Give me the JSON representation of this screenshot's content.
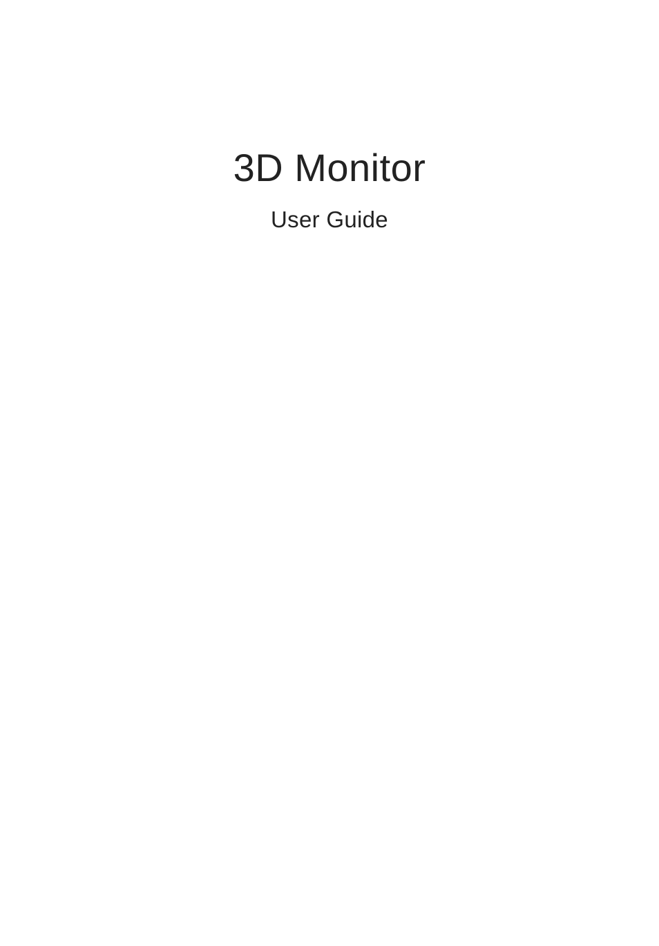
{
  "document": {
    "title": "3D Monitor",
    "subtitle": "User Guide",
    "title_fontsize": 56,
    "subtitle_fontsize": 33,
    "title_color": "#222222",
    "subtitle_color": "#222222",
    "background_color": "#ffffff",
    "font_family": "Segoe UI"
  }
}
